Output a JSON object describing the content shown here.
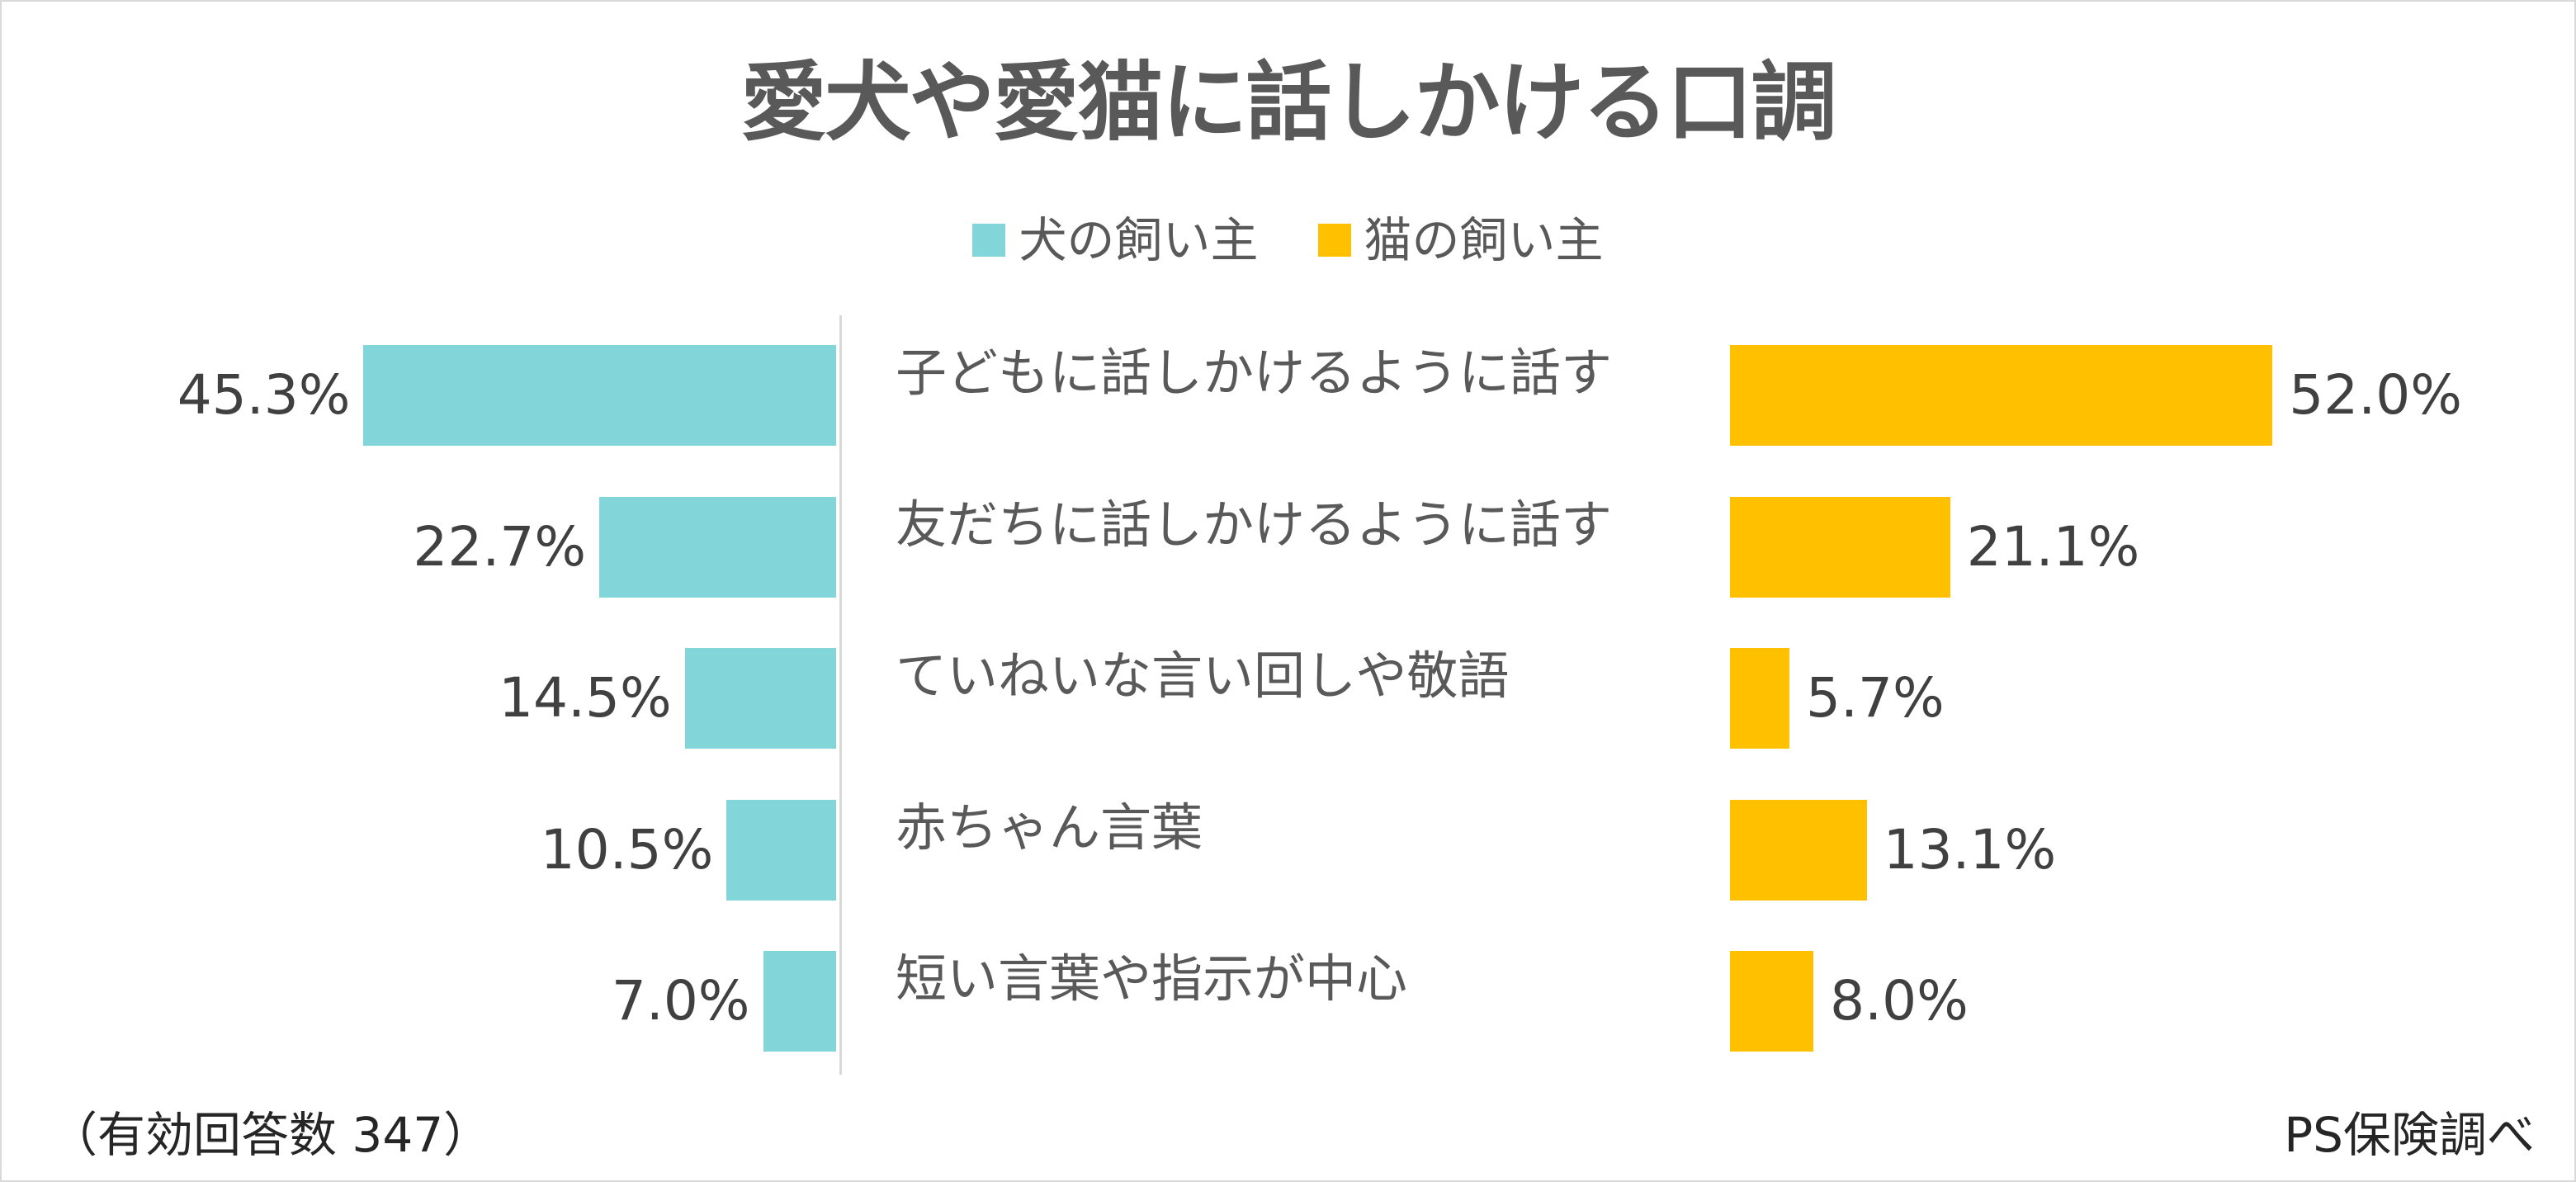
{
  "title": "愛犬や愛猫に話しかける口調",
  "footnote": "（有効回答数 347）",
  "source": "PS保険調べ",
  "colors": {
    "dog": "#82D6DA",
    "cat": "#FFC000"
  },
  "chart_data": {
    "type": "bar",
    "title": "愛犬や愛猫に話しかける口調",
    "legend_position": "top",
    "categories": [
      "子どもに話しかけるように話す",
      "友だちに話しかけるように話す",
      "ていねいな言い回しや敬語",
      "赤ちゃん言葉",
      "短い言葉や指示が中心"
    ],
    "series": [
      {
        "name": "犬の飼い主",
        "values": [
          45.3,
          22.7,
          14.5,
          10.5,
          7.0
        ],
        "labels": [
          "45.3%",
          "22.7%",
          "14.5%",
          "10.5%",
          "7.0%"
        ]
      },
      {
        "name": "猫の飼い主",
        "values": [
          52.0,
          21.1,
          5.7,
          13.1,
          8.0
        ],
        "labels": [
          "52.0%",
          "21.1%",
          "5.7%",
          "13.1%",
          "8.0%"
        ]
      }
    ],
    "unit": "%",
    "grid": false
  }
}
